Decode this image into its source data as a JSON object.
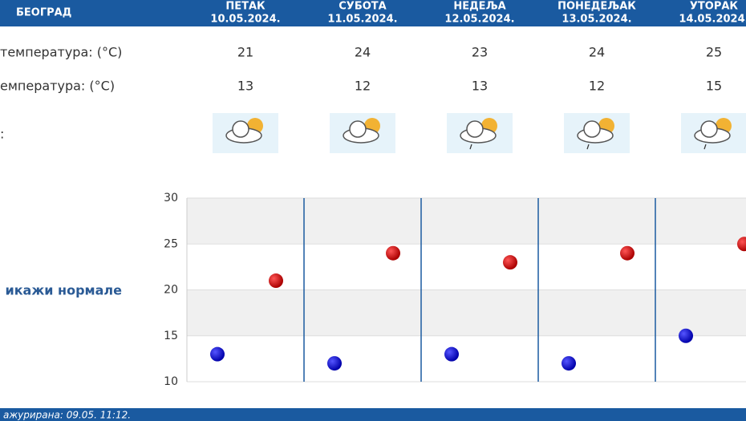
{
  "header": {
    "city": "БЕОГРАД",
    "days": [
      {
        "name": "ПЕТАК",
        "date": "10.05.2024."
      },
      {
        "name": "СУБОТА",
        "date": "11.05.2024."
      },
      {
        "name": "НЕДЕЉА",
        "date": "12.05.2024."
      },
      {
        "name": "ПОНЕДЕЉАК",
        "date": "13.05.2024."
      },
      {
        "name": "УТОРАК",
        "date": "14.05.2024."
      }
    ]
  },
  "rows": [
    {
      "label": "температура: (°C)",
      "values": [
        21,
        24,
        23,
        24,
        25
      ],
      "color": "#cc0000"
    },
    {
      "label": "емпература: (°C)",
      "values": [
        13,
        12,
        13,
        12,
        15
      ],
      "color": "#0000bb"
    },
    {
      "label": ":"
    }
  ],
  "chart": {
    "ylim": [
      10,
      30
    ],
    "yticks": [
      10,
      15,
      20,
      25,
      30
    ]
  },
  "toggle": "икажи нормале",
  "footer": "ажурирана:  09.05.  11:12."
}
